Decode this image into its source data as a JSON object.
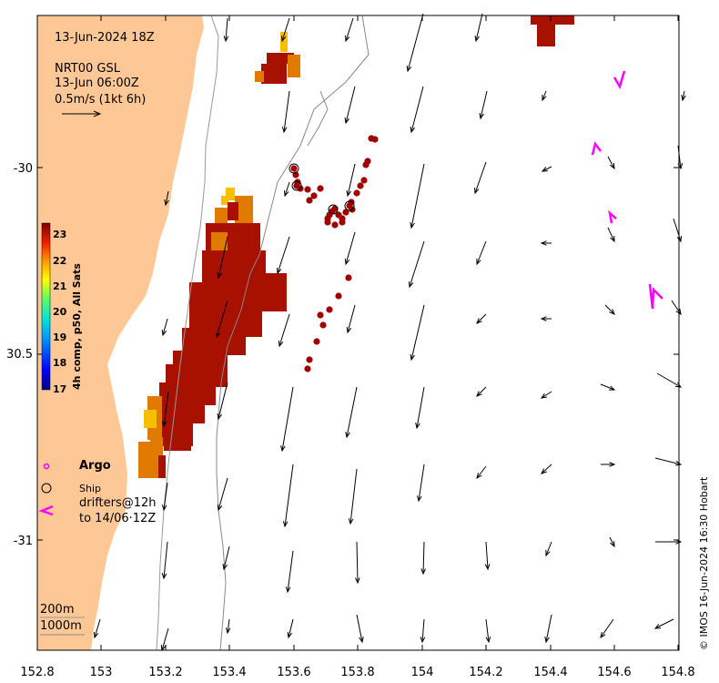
{
  "header": {
    "date": "13-Jun-2024 18Z",
    "product": "NRT00 GSL",
    "current_time": "13-Jun 06:00Z",
    "scale_text": "0.5m/s (1kt 6h)"
  },
  "axes": {
    "x_ticks": [
      "152.8",
      "153",
      "153.2",
      "153.4",
      "153.6",
      "153.8",
      "154",
      "154.2",
      "154.4",
      "154.6",
      "154.8"
    ],
    "y_ticks": [
      "-30",
      "30.5",
      "-31"
    ]
  },
  "colorbar": {
    "title": "4h comp, p50, All Sats",
    "ticks": [
      "23",
      "22",
      "21",
      "20",
      "19",
      "18",
      "17"
    ],
    "range": [
      17,
      23
    ],
    "colors": [
      "#00007f",
      "#0000ff",
      "#0080ff",
      "#00ffff",
      "#80ff80",
      "#ffff00",
      "#ff8000",
      "#ff0000",
      "#7f0000"
    ]
  },
  "legend": {
    "argo": "Argo",
    "ship": "Ship",
    "drifters_line1": "drifters@12h",
    "drifters_line2": "to 14/06·12Z"
  },
  "depth_labels": {
    "d200": "200m",
    "d1000": "1000m"
  },
  "credit": "© IMOS 16-Jun-2024 16:30 Hobart",
  "colors": {
    "land": "#fdc896",
    "sst_warm": "#a81000",
    "sst_orange": "#e07a00",
    "sst_yellow": "#f5c000",
    "argo": "#ff00ff",
    "drifter": "#a00000",
    "arrow": "#000000",
    "isobath": "#888888"
  },
  "chart_data": {
    "type": "map",
    "x_range": [
      152.8,
      154.8
    ],
    "y_range": [
      -31.3,
      -29.6
    ],
    "sst_range_degC": [
      17,
      23
    ]
  }
}
